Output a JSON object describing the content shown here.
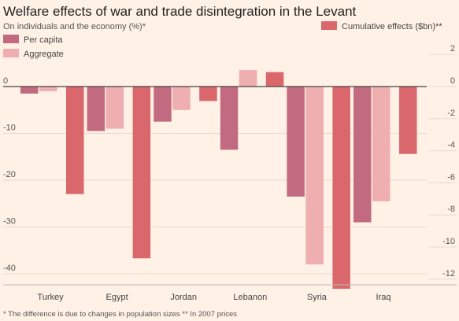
{
  "title": "Welfare effects of war and trade disintegration in the Levant",
  "subtitle": "On individuals and the economy (%)*",
  "footnote": "* The difference is due to changes in population sizes  ** In 2007 prices",
  "colors": {
    "background": "#fff1e5",
    "per_capita": "#c26a80",
    "aggregate": "#efaeb0",
    "cumulative": "#d9676b",
    "zero_line": "#444444",
    "grid": "#e6d9ce"
  },
  "chart_data": {
    "type": "bar",
    "categories": [
      "Turkey",
      "Egypt",
      "Jordan",
      "Lebanon",
      "Syria",
      "Iraq"
    ],
    "series": [
      {
        "name": "Per capita",
        "axis": "left",
        "values": [
          -1.5,
          -9.5,
          -7.5,
          -13.5,
          -23.5,
          -29
        ]
      },
      {
        "name": "Aggregate",
        "axis": "left",
        "values": [
          -1,
          -9,
          -5,
          3.5,
          -38,
          -24.5
        ]
      },
      {
        "name": "Cumulative effects ($bn)**",
        "axis": "right",
        "values": [
          -6.7,
          -10.7,
          -0.9,
          0.9,
          -12.6,
          -4.2
        ]
      }
    ],
    "left_axis": {
      "ticks": [
        "0",
        "-10",
        "-20",
        "-30",
        "-40"
      ],
      "ylim": [
        -41,
        5
      ]
    },
    "right_axis": {
      "ticks": [
        "2",
        "0",
        "-2",
        "-4",
        "-6",
        "-8",
        "-10",
        "-12"
      ],
      "ylim": [
        -12.3,
        2.5
      ]
    },
    "legend": {
      "left": [
        "Per capita",
        "Aggregate"
      ],
      "right": [
        "Cumulative effects ($bn)**"
      ]
    },
    "grid": true
  }
}
